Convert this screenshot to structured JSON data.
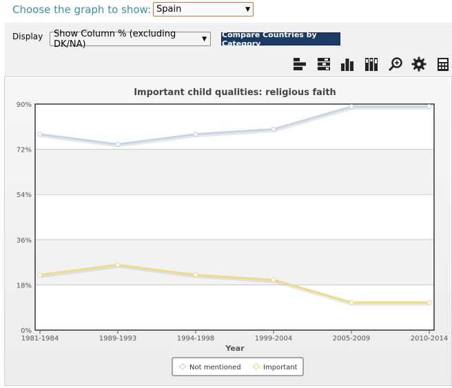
{
  "header": {
    "choose_label": "Choose the graph to show:",
    "country_value": "Spain"
  },
  "controls": {
    "display_label": "Display",
    "display_value": "Show Column % (excluding DK/NA)",
    "compare_label": "Compare Countries by Category"
  },
  "toolbar": {
    "icons": [
      "bar-horizontal-icon",
      "stacked-horizontal-icon",
      "bar-vertical-icon",
      "stacked-vertical-icon",
      "zoom-icon",
      "settings-icon",
      "calculator-icon"
    ]
  },
  "chart_data": {
    "type": "line",
    "title": "Important child qualities: religious faith",
    "xlabel": "Year",
    "ylabel": "",
    "categories": [
      "1981-1984",
      "1989-1993",
      "1994-1998",
      "1999-2004",
      "2005-2009",
      "2010-2014"
    ],
    "ylim": [
      0,
      90
    ],
    "yticks": [
      "0%",
      "18%",
      "36%",
      "54%",
      "72%",
      "90%"
    ],
    "series": [
      {
        "name": "Not mentioned",
        "color": "#c9d4e6",
        "values": [
          78,
          74,
          78,
          80,
          89,
          89
        ]
      },
      {
        "name": "Important",
        "color": "#ecdc8a",
        "values": [
          22,
          26,
          22,
          20,
          11,
          11
        ]
      }
    ],
    "legend": "bottom-center",
    "grid": true
  }
}
